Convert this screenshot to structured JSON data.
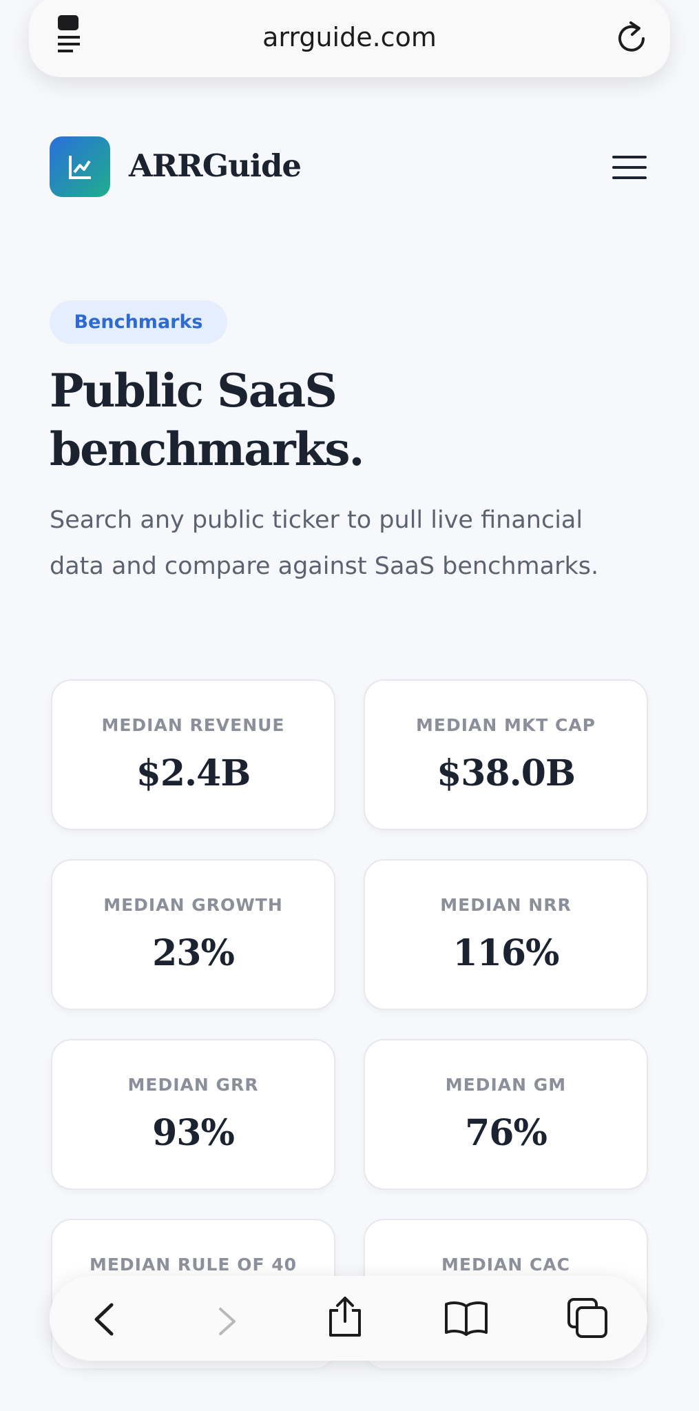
{
  "browser": {
    "url": "arrguide.com"
  },
  "header": {
    "brand": "ARRGuide"
  },
  "hero": {
    "badge": "Benchmarks",
    "title_lines": [
      "Public SaaS",
      "benchmarks."
    ],
    "subtitle_lines": [
      "Search any public ticker to pull live financial",
      "data and compare against SaaS benchmarks."
    ]
  },
  "stats": [
    {
      "label": "MEDIAN REVENUE",
      "value": "$2.4B"
    },
    {
      "label": "MEDIAN MKT CAP",
      "value": "$38.0B"
    },
    {
      "label": "MEDIAN GROWTH",
      "value": "23%"
    },
    {
      "label": "MEDIAN NRR",
      "value": "116%"
    },
    {
      "label": "MEDIAN GRR",
      "value": "93%"
    },
    {
      "label": "MEDIAN GM",
      "value": "76%"
    },
    {
      "label": "MEDIAN RULE OF 40"
    },
    {
      "label": "MEDIAN CAC"
    }
  ]
}
